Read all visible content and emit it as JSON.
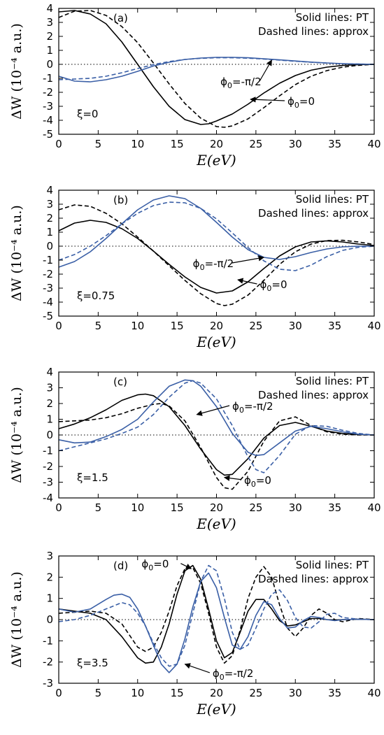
{
  "figure": {
    "xlabel": "E(eV)",
    "ylabel": "ΔW (10⁻⁴ a.u.)",
    "legend": [
      "Solid lines: PT",
      "Dashed lines: approx"
    ]
  },
  "colors": {
    "black": "#000000",
    "blue": "#3a5fa6"
  },
  "chart_data": [
    {
      "type": "line",
      "panel": "(a)",
      "xi_label": "ξ=0",
      "xlim": [
        0,
        40
      ],
      "ylim": [
        -5,
        4
      ],
      "xticks": [
        0,
        5,
        10,
        15,
        20,
        25,
        30,
        35,
        40
      ],
      "yticks": [
        -5,
        -4,
        -3,
        -2,
        -1,
        0,
        1,
        2,
        3,
        4
      ],
      "labels": [
        {
          "text": "ϕ0=-π/2",
          "x": 20.5,
          "y": -1.5,
          "arrow_to": [
            27.0,
            0.3
          ]
        },
        {
          "text": "ϕ0=0",
          "x": 29,
          "y": -2.9,
          "arrow_to": [
            24.3,
            -2.5
          ]
        }
      ],
      "series": [
        {
          "color": "black",
          "dash": false,
          "x": [
            0,
            2,
            4,
            6,
            8,
            10,
            12,
            14,
            16,
            18,
            19,
            20,
            22,
            24,
            26,
            28,
            30,
            32,
            34,
            36,
            38,
            40
          ],
          "y": [
            3.75,
            3.85,
            3.6,
            2.9,
            1.6,
            0.0,
            -1.6,
            -3.0,
            -3.95,
            -4.3,
            -4.25,
            -4.05,
            -3.55,
            -2.85,
            -2.05,
            -1.35,
            -0.8,
            -0.42,
            -0.2,
            -0.08,
            -0.02,
            0.0
          ]
        },
        {
          "color": "black",
          "dash": true,
          "x": [
            0,
            2,
            4,
            6,
            8,
            10,
            12,
            14,
            16,
            18,
            20,
            21,
            22,
            24,
            26,
            28,
            30,
            32,
            34,
            36,
            38,
            40
          ],
          "y": [
            3.35,
            3.8,
            3.85,
            3.5,
            2.7,
            1.55,
            0.1,
            -1.4,
            -2.8,
            -3.85,
            -4.45,
            -4.5,
            -4.4,
            -3.9,
            -3.1,
            -2.25,
            -1.45,
            -0.85,
            -0.45,
            -0.2,
            -0.07,
            0.0
          ]
        },
        {
          "color": "blue",
          "dash": false,
          "x": [
            0,
            2,
            4,
            6,
            8,
            10,
            12,
            14,
            16,
            18,
            20,
            22,
            24,
            26,
            28,
            30,
            32,
            34,
            36,
            38,
            40
          ],
          "y": [
            -0.85,
            -1.2,
            -1.25,
            -1.1,
            -0.85,
            -0.5,
            -0.12,
            0.15,
            0.35,
            0.45,
            0.5,
            0.5,
            0.47,
            0.4,
            0.32,
            0.24,
            0.16,
            0.1,
            0.05,
            0.02,
            0.0
          ]
        },
        {
          "color": "blue",
          "dash": true,
          "x": [
            0,
            2,
            4,
            6,
            8,
            10,
            12,
            14,
            16,
            18,
            20,
            22,
            24,
            26,
            28,
            30,
            32,
            34,
            36,
            38,
            40
          ],
          "y": [
            -1.1,
            -1.05,
            -1.0,
            -0.85,
            -0.6,
            -0.3,
            -0.02,
            0.2,
            0.35,
            0.43,
            0.47,
            0.47,
            0.44,
            0.38,
            0.3,
            0.22,
            0.15,
            0.09,
            0.04,
            0.02,
            0.0
          ]
        }
      ]
    },
    {
      "type": "line",
      "panel": "(b)",
      "xi_label": "ξ=0.75",
      "xlim": [
        0,
        40
      ],
      "ylim": [
        -5,
        4
      ],
      "xticks": [
        0,
        5,
        10,
        15,
        20,
        25,
        30,
        35,
        40
      ],
      "yticks": [
        -5,
        -4,
        -3,
        -2,
        -1,
        0,
        1,
        2,
        3,
        4
      ],
      "labels": [
        {
          "text": "ϕ0=-π/2",
          "x": 17,
          "y": -1.5,
          "arrow_to": [
            26.0,
            -0.8
          ]
        },
        {
          "text": "ϕ0=0",
          "x": 25.5,
          "y": -3.0,
          "arrow_to": [
            22.7,
            -2.4
          ]
        }
      ],
      "series": [
        {
          "color": "black",
          "dash": false,
          "x": [
            0,
            2,
            4,
            6,
            8,
            10,
            12,
            14,
            16,
            18,
            20,
            22,
            24,
            26,
            28,
            30,
            32,
            34,
            36,
            38,
            40
          ],
          "y": [
            1.1,
            1.65,
            1.85,
            1.7,
            1.25,
            0.55,
            -0.35,
            -1.3,
            -2.2,
            -2.95,
            -3.35,
            -3.2,
            -2.55,
            -1.6,
            -0.7,
            -0.05,
            0.3,
            0.38,
            0.3,
            0.15,
            0.05
          ]
        },
        {
          "color": "black",
          "dash": true,
          "x": [
            0,
            2,
            4,
            6,
            8,
            10,
            12,
            14,
            16,
            18,
            20,
            21,
            22,
            24,
            26,
            28,
            30,
            32,
            34,
            36,
            38,
            40
          ],
          "y": [
            2.6,
            2.95,
            2.85,
            2.35,
            1.6,
            0.65,
            -0.35,
            -1.4,
            -2.45,
            -3.4,
            -4.1,
            -4.25,
            -4.15,
            -3.5,
            -2.45,
            -1.3,
            -0.4,
            0.15,
            0.4,
            0.42,
            0.3,
            0.12
          ]
        },
        {
          "color": "blue",
          "dash": false,
          "x": [
            0,
            2,
            4,
            6,
            8,
            10,
            12,
            14,
            16,
            18,
            20,
            22,
            24,
            26,
            28,
            30,
            32,
            34,
            36,
            38,
            40
          ],
          "y": [
            -1.5,
            -1.1,
            -0.4,
            0.55,
            1.6,
            2.6,
            3.3,
            3.6,
            3.4,
            2.7,
            1.7,
            0.65,
            -0.25,
            -0.8,
            -0.95,
            -0.75,
            -0.45,
            -0.2,
            -0.05,
            0.0,
            0.0
          ]
        },
        {
          "color": "blue",
          "dash": true,
          "x": [
            0,
            2,
            4,
            6,
            8,
            10,
            12,
            14,
            16,
            18,
            20,
            22,
            24,
            26,
            28,
            30,
            32,
            34,
            36,
            38,
            40
          ],
          "y": [
            -1.0,
            -0.6,
            0.0,
            0.75,
            1.6,
            2.35,
            2.9,
            3.15,
            3.1,
            2.7,
            1.95,
            0.95,
            -0.1,
            -1.05,
            -1.65,
            -1.75,
            -1.35,
            -0.75,
            -0.3,
            -0.08,
            0.0
          ]
        }
      ]
    },
    {
      "type": "line",
      "panel": "(c)",
      "xi_label": "ξ=1.5",
      "xlim": [
        0,
        40
      ],
      "ylim": [
        -4,
        4
      ],
      "xticks": [
        0,
        5,
        10,
        15,
        20,
        25,
        30,
        35,
        40
      ],
      "yticks": [
        -4,
        -3,
        -2,
        -1,
        0,
        1,
        2,
        3,
        4
      ],
      "labels": [
        {
          "text": "ϕ0=-π/2",
          "x": 22,
          "y": 1.6,
          "arrow_to": [
            17.5,
            1.3
          ]
        },
        {
          "text": "ϕ0=0",
          "x": 23.5,
          "y": -3.1,
          "arrow_to": [
            21.0,
            -2.7
          ]
        }
      ],
      "series": [
        {
          "color": "black",
          "dash": false,
          "x": [
            0,
            2,
            4,
            6,
            8,
            10,
            11,
            12,
            14,
            16,
            18,
            20,
            21,
            22,
            24,
            26,
            28,
            30,
            32,
            34,
            36,
            38,
            40
          ],
          "y": [
            0.4,
            0.7,
            1.1,
            1.6,
            2.2,
            2.55,
            2.6,
            2.5,
            1.8,
            0.6,
            -0.9,
            -2.2,
            -2.55,
            -2.5,
            -1.5,
            -0.2,
            0.6,
            0.8,
            0.55,
            0.25,
            0.1,
            0.03,
            0.0
          ]
        },
        {
          "color": "black",
          "dash": true,
          "x": [
            0,
            2,
            4,
            6,
            8,
            10,
            12,
            13,
            14,
            16,
            18,
            20,
            21,
            22,
            24,
            26,
            28,
            30,
            32,
            34,
            36,
            38,
            40
          ],
          "y": [
            0.85,
            0.9,
            0.95,
            1.1,
            1.35,
            1.7,
            1.95,
            2.0,
            1.85,
            0.9,
            -0.8,
            -2.7,
            -3.35,
            -3.45,
            -2.3,
            -0.4,
            0.9,
            1.15,
            0.6,
            0.2,
            0.05,
            0.0,
            0.0
          ]
        },
        {
          "color": "blue",
          "dash": false,
          "x": [
            0,
            2,
            4,
            6,
            8,
            10,
            12,
            14,
            16,
            17,
            18,
            20,
            22,
            24,
            25,
            26,
            28,
            30,
            32,
            34,
            36,
            38,
            40
          ],
          "y": [
            -0.3,
            -0.5,
            -0.45,
            -0.1,
            0.35,
            1.0,
            2.1,
            3.1,
            3.5,
            3.45,
            3.1,
            1.8,
            0.1,
            -1.1,
            -1.3,
            -1.25,
            -0.5,
            0.25,
            0.55,
            0.4,
            0.2,
            0.05,
            0.0
          ]
        },
        {
          "color": "blue",
          "dash": true,
          "x": [
            0,
            2,
            4,
            6,
            8,
            10,
            12,
            14,
            16,
            17,
            18,
            20,
            22,
            24,
            25,
            26,
            28,
            30,
            32,
            34,
            36,
            38,
            40
          ],
          "y": [
            -1.0,
            -0.75,
            -0.5,
            -0.25,
            0.1,
            0.5,
            1.3,
            2.4,
            3.3,
            3.45,
            3.3,
            2.3,
            0.6,
            -1.4,
            -2.2,
            -2.4,
            -1.3,
            0.05,
            0.6,
            0.55,
            0.3,
            0.1,
            0.0
          ]
        }
      ]
    },
    {
      "type": "line",
      "panel": "(d)",
      "xi_label": "ξ=3.5",
      "xlim": [
        0,
        40
      ],
      "ylim": [
        -3,
        3
      ],
      "xticks": [
        0,
        5,
        10,
        15,
        20,
        25,
        30,
        35,
        40
      ],
      "yticks": [
        -3,
        -2,
        -1,
        0,
        1,
        2,
        3
      ],
      "labels": [
        {
          "text": "ϕ0=0",
          "x": 10.5,
          "y": 2.45,
          "arrow_to": [
            16.8,
            2.4
          ]
        },
        {
          "text": "ϕ0=-π/2",
          "x": 19.5,
          "y": -2.7,
          "arrow_to": [
            16.0,
            -2.1
          ]
        }
      ],
      "series": [
        {
          "color": "black",
          "dash": false,
          "x": [
            0,
            2,
            4,
            6,
            8,
            10,
            11,
            12,
            13,
            14,
            15,
            16,
            17,
            18,
            19,
            20,
            21,
            22,
            23,
            24,
            25,
            26,
            27,
            28,
            29,
            30,
            31,
            32,
            33,
            34,
            35,
            36,
            38,
            40
          ],
          "y": [
            0.5,
            0.4,
            0.3,
            0.0,
            -0.8,
            -1.8,
            -2.05,
            -2.0,
            -1.3,
            -0.2,
            1.2,
            2.3,
            2.55,
            1.9,
            0.5,
            -1.0,
            -1.8,
            -1.55,
            -0.6,
            0.4,
            0.95,
            0.95,
            0.5,
            -0.05,
            -0.3,
            -0.25,
            -0.1,
            0.05,
            0.05,
            0.0,
            -0.02,
            0.0,
            0.02,
            0.0
          ]
        },
        {
          "color": "black",
          "dash": true,
          "x": [
            0,
            2,
            4,
            6,
            8,
            10,
            11,
            12,
            13,
            14,
            15,
            16,
            17,
            18,
            19,
            20,
            21,
            22,
            23,
            24,
            25,
            26,
            27,
            28,
            29,
            30,
            31,
            32,
            33,
            34,
            35,
            36,
            38,
            40
          ],
          "y": [
            0.3,
            0.35,
            0.4,
            0.3,
            -0.2,
            -1.3,
            -1.5,
            -1.3,
            -0.6,
            0.4,
            1.6,
            2.4,
            2.45,
            1.7,
            0.3,
            -1.3,
            -2.05,
            -1.7,
            -0.5,
            1.0,
            2.0,
            2.5,
            2.0,
            0.7,
            -0.4,
            -0.8,
            -0.4,
            0.2,
            0.5,
            0.3,
            0.0,
            -0.1,
            0.05,
            0.0
          ]
        },
        {
          "color": "blue",
          "dash": false,
          "x": [
            0,
            2,
            4,
            6,
            7,
            8,
            9,
            10,
            11,
            12,
            13,
            14,
            15,
            16,
            17,
            18,
            19,
            20,
            21,
            22,
            23,
            24,
            25,
            26,
            27,
            28,
            29,
            30,
            31,
            32,
            33,
            34,
            35,
            36,
            38,
            40
          ],
          "y": [
            0.5,
            0.35,
            0.5,
            0.95,
            1.15,
            1.2,
            1.05,
            0.5,
            -0.3,
            -1.2,
            -2.1,
            -2.5,
            -2.1,
            -0.9,
            0.6,
            1.8,
            2.2,
            1.5,
            0.1,
            -1.2,
            -1.4,
            -0.8,
            0.2,
            0.85,
            0.7,
            0.05,
            -0.4,
            -0.35,
            -0.05,
            0.15,
            0.1,
            0.0,
            -0.05,
            0.0,
            0.02,
            0.0
          ]
        },
        {
          "color": "blue",
          "dash": true,
          "x": [
            0,
            2,
            4,
            6,
            8,
            9,
            10,
            11,
            12,
            13,
            14,
            15,
            16,
            17,
            18,
            19,
            20,
            21,
            22,
            23,
            24,
            25,
            26,
            27,
            28,
            29,
            30,
            31,
            32,
            33,
            34,
            35,
            36,
            38,
            40
          ],
          "y": [
            -0.1,
            0.0,
            0.2,
            0.5,
            0.8,
            0.7,
            0.3,
            -0.3,
            -1.1,
            -1.8,
            -2.2,
            -2.1,
            -1.2,
            0.3,
            1.8,
            2.55,
            2.3,
            1.0,
            -0.6,
            -1.4,
            -1.2,
            -0.4,
            0.5,
            1.2,
            1.4,
            0.9,
            0.1,
            -0.35,
            -0.4,
            -0.1,
            0.25,
            0.3,
            0.1,
            0.02,
            0.0
          ]
        }
      ]
    }
  ]
}
